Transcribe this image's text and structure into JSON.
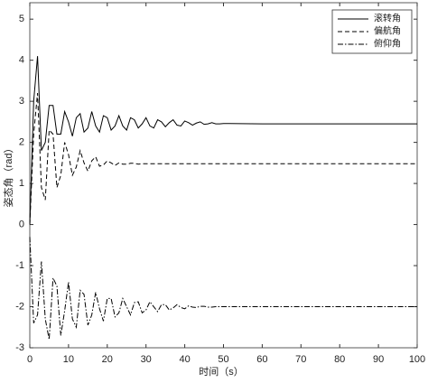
{
  "chart_data": {
    "type": "line",
    "xlabel": "时间（s）",
    "ylabel": "姿态角（rad）",
    "x": [
      0,
      1,
      2,
      3,
      4,
      5,
      6,
      7,
      8,
      9,
      10,
      11,
      12,
      13,
      14,
      15,
      16,
      17,
      18,
      19,
      20,
      21,
      22,
      23,
      24,
      25,
      26,
      27,
      28,
      29,
      30,
      31,
      32,
      33,
      34,
      35,
      36,
      37,
      38,
      39,
      40,
      41,
      42,
      43,
      44,
      45,
      46,
      47,
      48,
      49,
      50,
      60,
      70,
      80,
      90,
      100
    ],
    "series": [
      {
        "name": "滚转角",
        "color": "#000000",
        "dash": "solid",
        "values": [
          0,
          3.0,
          4.1,
          1.8,
          2.0,
          2.9,
          2.9,
          2.2,
          2.2,
          2.75,
          2.5,
          2.15,
          2.6,
          2.7,
          2.25,
          2.35,
          2.75,
          2.4,
          2.25,
          2.65,
          2.6,
          2.3,
          2.4,
          2.65,
          2.4,
          2.3,
          2.6,
          2.55,
          2.35,
          2.45,
          2.6,
          2.4,
          2.35,
          2.55,
          2.5,
          2.38,
          2.48,
          2.55,
          2.42,
          2.4,
          2.52,
          2.48,
          2.42,
          2.47,
          2.5,
          2.44,
          2.45,
          2.48,
          2.45,
          2.45,
          2.46,
          2.45,
          2.45,
          2.45,
          2.45,
          2.45
        ]
      },
      {
        "name": "偏航角",
        "color": "#000000",
        "dash": "dashed",
        "values": [
          0,
          2.2,
          3.2,
          0.9,
          0.6,
          2.3,
          2.2,
          0.9,
          1.2,
          2.0,
          1.7,
          1.2,
          1.4,
          1.8,
          1.5,
          1.3,
          1.55,
          1.65,
          1.42,
          1.45,
          1.55,
          1.5,
          1.44,
          1.5,
          1.47,
          1.47,
          1.49,
          1.49,
          1.47,
          1.48,
          1.48,
          1.48,
          1.48,
          1.48,
          1.48,
          1.48,
          1.48,
          1.48,
          1.48,
          1.48,
          1.48,
          1.48,
          1.48,
          1.48,
          1.48,
          1.48,
          1.48,
          1.48,
          1.48,
          1.48,
          1.48,
          1.48,
          1.48,
          1.48,
          1.48,
          1.48
        ]
      },
      {
        "name": "俯仰角",
        "color": "#000000",
        "dash": "dashdot",
        "values": [
          -0.3,
          -2.4,
          -2.2,
          -0.9,
          -2.3,
          -2.8,
          -1.3,
          -1.5,
          -2.7,
          -2.1,
          -1.4,
          -2.3,
          -2.5,
          -1.6,
          -1.7,
          -2.45,
          -2.2,
          -1.65,
          -2.05,
          -2.35,
          -1.8,
          -1.8,
          -2.25,
          -2.15,
          -1.8,
          -2.0,
          -2.2,
          -1.9,
          -1.88,
          -2.15,
          -2.08,
          -1.88,
          -2.0,
          -2.12,
          -1.95,
          -1.95,
          -2.08,
          -2.03,
          -1.95,
          -2.02,
          -2.05,
          -1.98,
          -2.01,
          -2.02,
          -1.99,
          -1.99,
          -2.01,
          -2.01,
          -2.0,
          -2.0,
          -2.0,
          -2.0,
          -2.0,
          -2.0,
          -2.0,
          -2.0
        ]
      }
    ],
    "xlim": [
      0,
      100
    ],
    "xticks": [
      0,
      10,
      20,
      30,
      40,
      50,
      60,
      70,
      80,
      90,
      100
    ],
    "ylim": [
      -3,
      5.4
    ],
    "yticks": [
      -3,
      -2,
      -1,
      0,
      1,
      2,
      3,
      4,
      5
    ],
    "legend": "upper right",
    "grid": false
  }
}
